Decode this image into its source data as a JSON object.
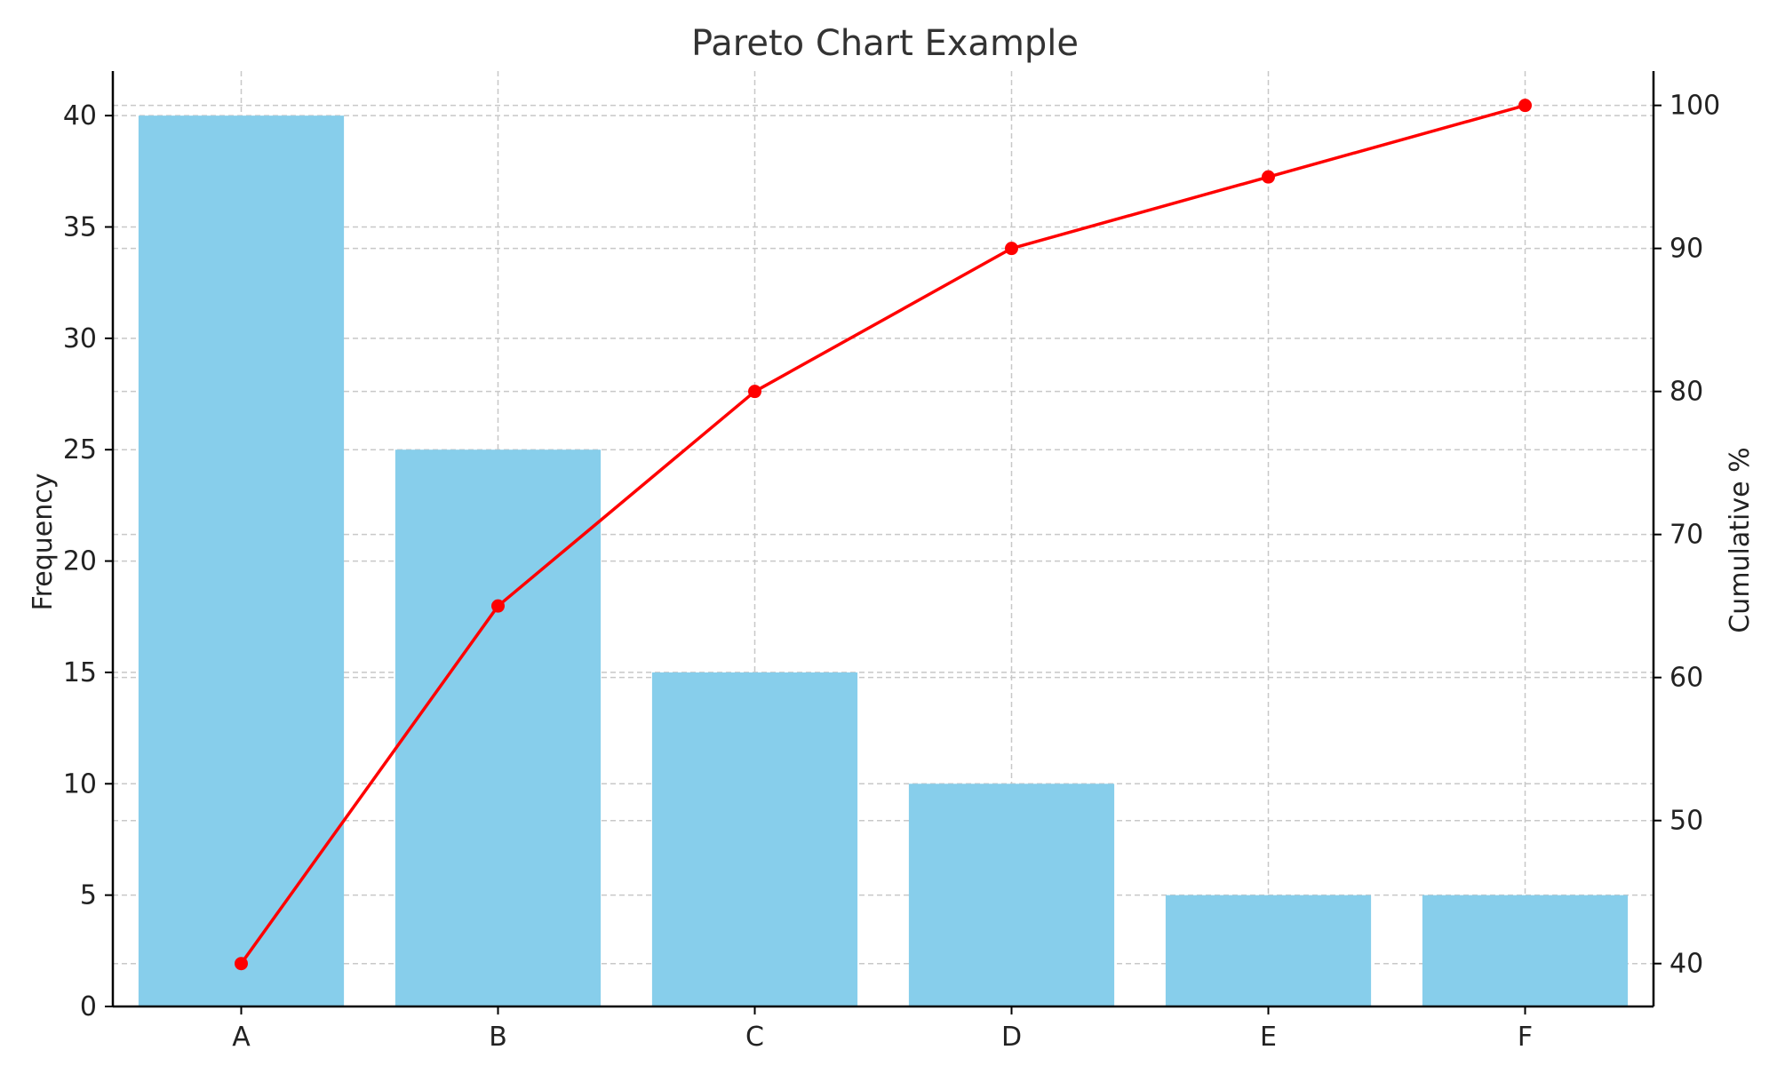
{
  "chart_data": {
    "type": "bar",
    "title": "Pareto Chart Example",
    "xlabel": "",
    "ylabel": "Frequency",
    "y2label": "Cumulative %",
    "categories": [
      "A",
      "B",
      "C",
      "D",
      "E",
      "F"
    ],
    "ylim": [
      0,
      42
    ],
    "y2lim": [
      37,
      102.4
    ],
    "yticks": [
      0,
      5,
      10,
      15,
      20,
      25,
      30,
      35,
      40
    ],
    "y2ticks": [
      40,
      50,
      60,
      70,
      80,
      90,
      100
    ],
    "grid": true,
    "series": [
      {
        "type": "bar",
        "axis": "left",
        "color": "#87CEEB",
        "values": [
          40,
          25,
          15,
          10,
          5,
          5
        ]
      },
      {
        "type": "line",
        "axis": "right",
        "color": "#FF0000",
        "marker": "circle",
        "values": [
          40,
          65,
          80,
          90,
          95,
          100
        ]
      }
    ]
  }
}
